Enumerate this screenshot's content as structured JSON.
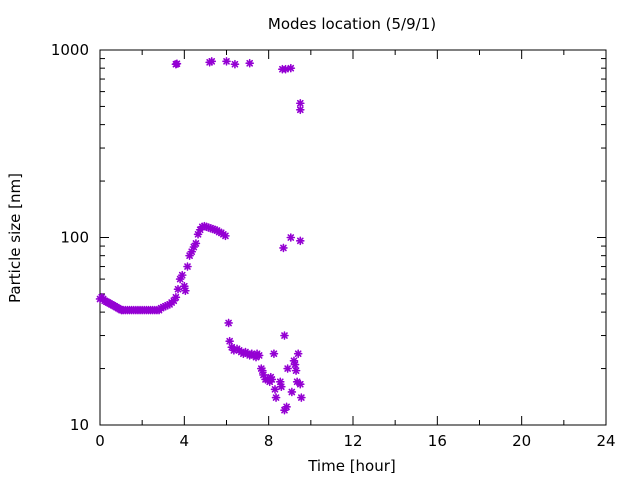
{
  "chart_data": {
    "type": "scatter",
    "title": "Modes location (5/9/1)",
    "xlabel": "Time [hour]",
    "ylabel": "Particle size [nm]",
    "xlim": [
      0,
      24
    ],
    "ylim": [
      10,
      1000
    ],
    "yscale": "log",
    "grid": false,
    "legend": "none",
    "x_ticks": [
      0,
      4,
      8,
      12,
      16,
      20,
      24
    ],
    "y_ticks": [
      10,
      100,
      1000
    ],
    "colors": {
      "marker": "#9400d3",
      "axis": "#000000"
    },
    "series": [
      {
        "marker": "asterisk",
        "points": [
          [
            0.0,
            47
          ],
          [
            0.08,
            48
          ],
          [
            0.15,
            47
          ],
          [
            0.22,
            46
          ],
          [
            0.3,
            45.5
          ],
          [
            0.38,
            45
          ],
          [
            0.46,
            44.5
          ],
          [
            0.54,
            44
          ],
          [
            0.62,
            43.5
          ],
          [
            0.7,
            43
          ],
          [
            0.78,
            42.5
          ],
          [
            0.86,
            42
          ],
          [
            0.94,
            41.5
          ],
          [
            1.02,
            41
          ],
          [
            1.1,
            41
          ],
          [
            1.2,
            41
          ],
          [
            1.3,
            41
          ],
          [
            1.4,
            41
          ],
          [
            1.5,
            41
          ],
          [
            1.6,
            41
          ],
          [
            1.7,
            41
          ],
          [
            1.8,
            41
          ],
          [
            1.9,
            41
          ],
          [
            2.0,
            41
          ],
          [
            2.1,
            41
          ],
          [
            2.2,
            41
          ],
          [
            2.3,
            41
          ],
          [
            2.4,
            41
          ],
          [
            2.5,
            41
          ],
          [
            2.6,
            41
          ],
          [
            2.7,
            41
          ],
          [
            2.8,
            41
          ],
          [
            2.9,
            42
          ],
          [
            3.0,
            42.5
          ],
          [
            3.1,
            43
          ],
          [
            3.2,
            43.5
          ],
          [
            3.3,
            44
          ],
          [
            3.4,
            45
          ],
          [
            3.5,
            46
          ],
          [
            3.6,
            48
          ],
          [
            3.7,
            53
          ],
          [
            3.8,
            60
          ],
          [
            3.9,
            63
          ],
          [
            4.0,
            55
          ],
          [
            4.05,
            52
          ],
          [
            4.15,
            70
          ],
          [
            4.25,
            80
          ],
          [
            4.35,
            84
          ],
          [
            4.45,
            89
          ],
          [
            4.55,
            93
          ],
          [
            4.65,
            104
          ],
          [
            4.75,
            110
          ],
          [
            4.85,
            114
          ],
          [
            4.95,
            115
          ],
          [
            5.05,
            114
          ],
          [
            5.15,
            113
          ],
          [
            5.25,
            112
          ],
          [
            5.35,
            111
          ],
          [
            5.45,
            110
          ],
          [
            5.55,
            109
          ],
          [
            5.65,
            107
          ],
          [
            5.75,
            106
          ],
          [
            5.85,
            104
          ],
          [
            5.95,
            102
          ],
          [
            3.6,
            840
          ],
          [
            3.65,
            845
          ],
          [
            5.2,
            860
          ],
          [
            5.3,
            870
          ],
          [
            6.0,
            870
          ],
          [
            6.4,
            840
          ],
          [
            7.1,
            850
          ],
          [
            8.65,
            790
          ],
          [
            8.8,
            790
          ],
          [
            9.05,
            800
          ],
          [
            9.5,
            520
          ],
          [
            9.5,
            480
          ],
          [
            8.7,
            88
          ],
          [
            9.05,
            100
          ],
          [
            9.5,
            96
          ],
          [
            6.1,
            35
          ],
          [
            6.15,
            28
          ],
          [
            6.25,
            26
          ],
          [
            6.35,
            25
          ],
          [
            6.5,
            25.5
          ],
          [
            6.6,
            25
          ],
          [
            6.7,
            24.5
          ],
          [
            6.8,
            24
          ],
          [
            6.9,
            24.5
          ],
          [
            7.0,
            24
          ],
          [
            7.1,
            23.5
          ],
          [
            7.2,
            24
          ],
          [
            7.3,
            23.5
          ],
          [
            7.4,
            23
          ],
          [
            7.45,
            24
          ],
          [
            7.55,
            23.5
          ],
          [
            7.65,
            20
          ],
          [
            7.7,
            19.5
          ],
          [
            7.75,
            18.5
          ],
          [
            7.85,
            17.5
          ],
          [
            7.95,
            17.5
          ],
          [
            8.05,
            17
          ],
          [
            8.15,
            17.5
          ],
          [
            8.1,
            18
          ],
          [
            8.25,
            24
          ],
          [
            8.3,
            15.5
          ],
          [
            8.35,
            14
          ],
          [
            8.55,
            17
          ],
          [
            8.6,
            16
          ],
          [
            8.75,
            30
          ],
          [
            8.75,
            12
          ],
          [
            8.85,
            12.5
          ],
          [
            8.9,
            20
          ],
          [
            9.1,
            15
          ],
          [
            9.2,
            22
          ],
          [
            9.25,
            21
          ],
          [
            9.3,
            19.5
          ],
          [
            9.35,
            17
          ],
          [
            9.4,
            24
          ],
          [
            9.5,
            16.5
          ],
          [
            9.55,
            14
          ]
        ]
      }
    ]
  }
}
